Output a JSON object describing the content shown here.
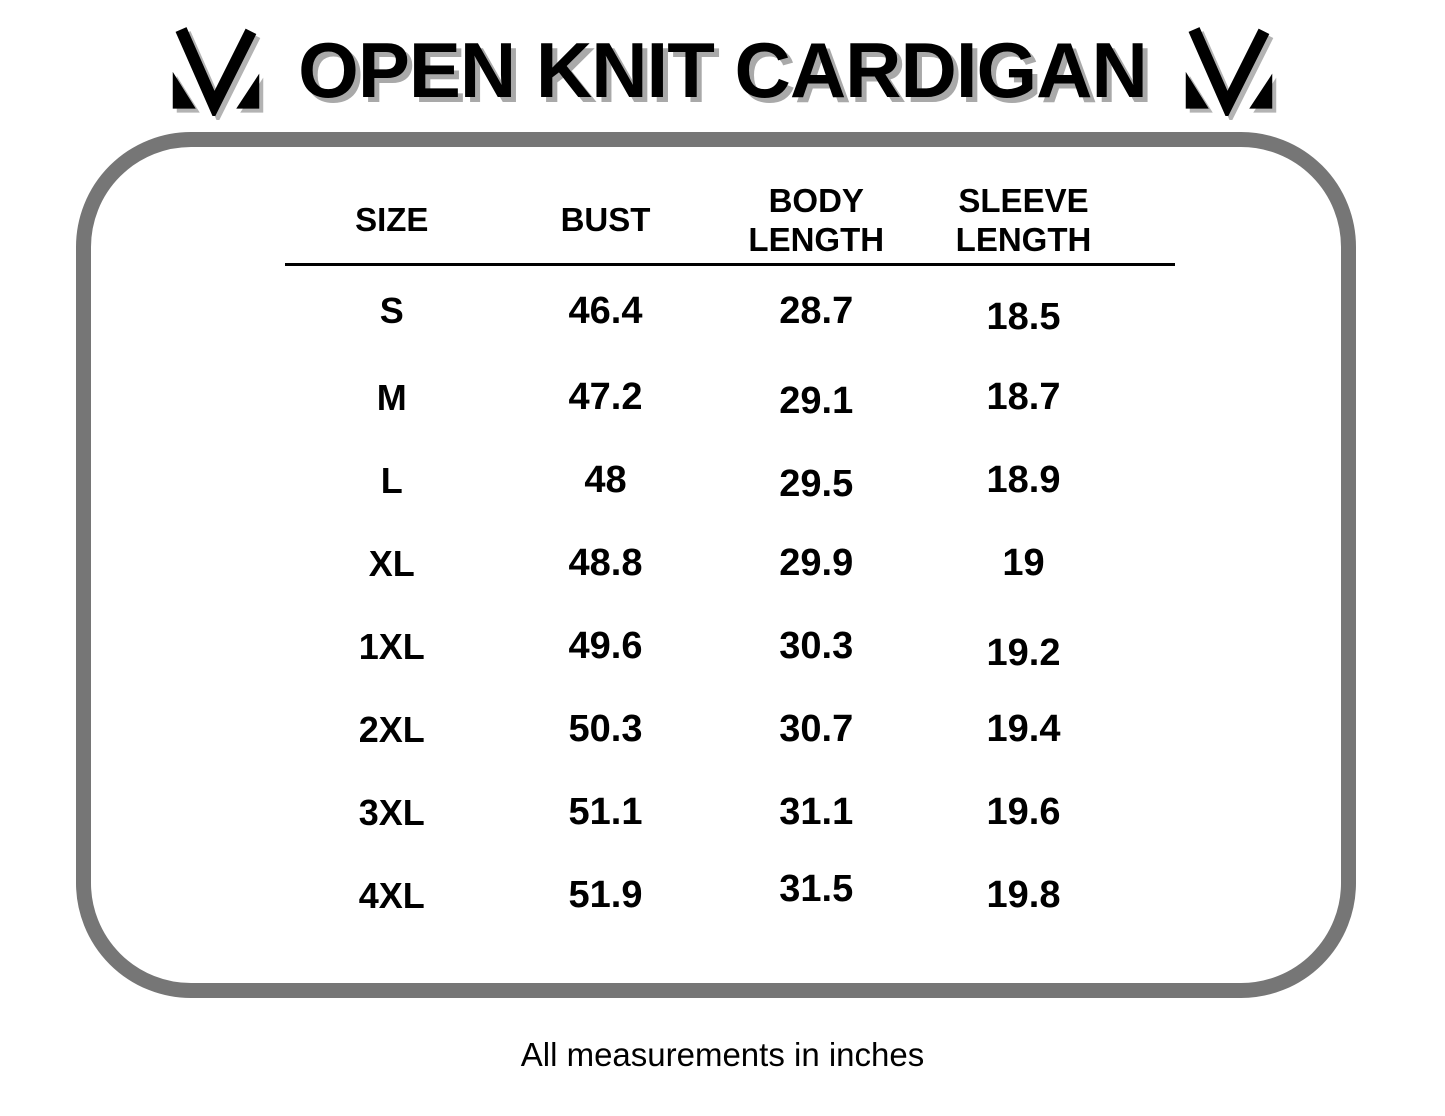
{
  "header": {
    "title": "OPEN KNIT CARDIGAN",
    "left_logo": "m-monogram",
    "right_logo": "m-monogram"
  },
  "chart_data": {
    "type": "table",
    "title": "OPEN KNIT CARDIGAN",
    "columns": [
      "SIZE",
      "BUST",
      "BODY LENGTH",
      "SLEEVE LENGTH"
    ],
    "rows": [
      [
        "S",
        "46.4",
        "28.7",
        "18.5"
      ],
      [
        "M",
        "47.2",
        "29.1",
        "18.7"
      ],
      [
        "L",
        "48",
        "29.5",
        "18.9"
      ],
      [
        "XL",
        "48.8",
        "29.9",
        "19"
      ],
      [
        "1XL",
        "49.6",
        "30.3",
        "19.2"
      ],
      [
        "2XL",
        "50.3",
        "30.7",
        "19.4"
      ],
      [
        "3XL",
        "51.1",
        "31.1",
        "19.6"
      ],
      [
        "4XL",
        "51.9",
        "31.5",
        "19.8"
      ]
    ],
    "note": "All measurements in inches",
    "units": "inches"
  },
  "footer": {
    "note": "All measurements in inches"
  },
  "colors": {
    "background": "#ffffff",
    "text": "#000000",
    "title_shadow": "#a9a9a9",
    "panel_border": "#767676"
  }
}
